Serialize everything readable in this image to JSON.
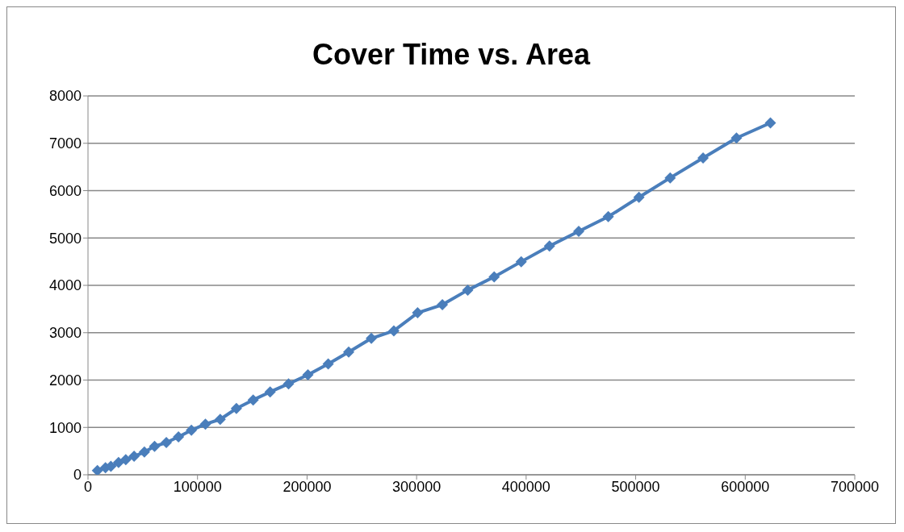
{
  "chart_data": {
    "type": "line",
    "title": "Cover Time vs. Area",
    "x": [
      8600,
      16000,
      20900,
      27900,
      34500,
      42100,
      51500,
      60800,
      71500,
      82600,
      94400,
      107200,
      120700,
      135500,
      150800,
      166300,
      183100,
      200800,
      219300,
      238000,
      258700,
      279200,
      300900,
      323500,
      346700,
      370800,
      395500,
      421300,
      448000,
      475000,
      503000,
      531500,
      561500,
      592000,
      623000
    ],
    "series": [
      {
        "color": "#4a7ebb",
        "values": [
          90,
          150,
          180,
          260,
          320,
          390,
          480,
          600,
          680,
          800,
          940,
          1070,
          1170,
          1400,
          1580,
          1750,
          1920,
          2110,
          2340,
          2590,
          2880,
          3040,
          3420,
          3590,
          3900,
          4180,
          4500,
          4830,
          5140,
          5450,
          5860,
          6270,
          6690,
          7110,
          7430
        ]
      }
    ],
    "xlim": [
      0,
      700000
    ],
    "xticks": [
      0,
      100000,
      200000,
      300000,
      400000,
      500000,
      600000,
      700000
    ],
    "ylim": [
      0,
      8000
    ],
    "yticks": [
      0,
      1000,
      2000,
      3000,
      4000,
      5000,
      6000,
      7000,
      8000
    ],
    "grid": "y",
    "marker": "diamond",
    "line_style": "solid"
  }
}
